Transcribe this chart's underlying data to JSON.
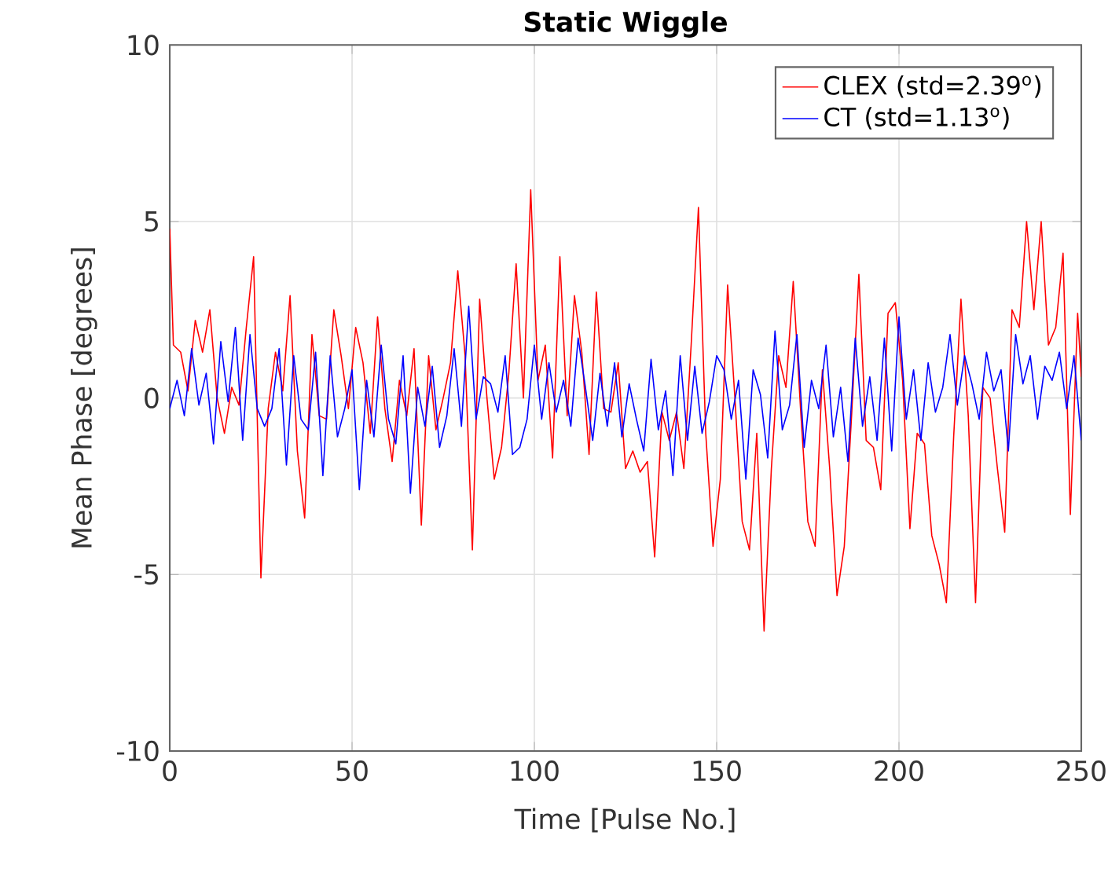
{
  "chart_data": {
    "type": "line",
    "title": "Static Wiggle",
    "xlabel": "Time [Pulse No.]",
    "ylabel": "Mean Phase [degrees]",
    "xlim": [
      0,
      250
    ],
    "ylim": [
      -10,
      10
    ],
    "xticks": [
      0,
      50,
      100,
      150,
      200,
      250
    ],
    "yticks": [
      -10,
      -5,
      0,
      5,
      10
    ],
    "grid": true,
    "legend": "top right",
    "series": [
      {
        "name": "CLEX (std=2.39$^{o}$)",
        "color": "#ff0000",
        "x": [
          0,
          1,
          3,
          5,
          7,
          9,
          11,
          13,
          15,
          17,
          19,
          21,
          23,
          25,
          27,
          29,
          31,
          33,
          35,
          37,
          39,
          41,
          43,
          45,
          47,
          49,
          51,
          53,
          55,
          57,
          59,
          61,
          63,
          65,
          67,
          69,
          71,
          73,
          75,
          77,
          79,
          81,
          83,
          85,
          87,
          89,
          91,
          93,
          95,
          97,
          99,
          101,
          103,
          105,
          107,
          109,
          111,
          113,
          115,
          117,
          119,
          121,
          123,
          125,
          127,
          129,
          131,
          133,
          135,
          137,
          139,
          141,
          143,
          145,
          147,
          149,
          151,
          153,
          155,
          157,
          159,
          161,
          163,
          165,
          167,
          169,
          171,
          173,
          175,
          177,
          179,
          181,
          183,
          185,
          187,
          189,
          191,
          193,
          195,
          197,
          199,
          201,
          203,
          205,
          207,
          209,
          211,
          213,
          215,
          217,
          219,
          221,
          223,
          225,
          227,
          229,
          231,
          233,
          235,
          237,
          239,
          241,
          243,
          245,
          247,
          249,
          250
        ],
        "values": [
          4.8,
          1.5,
          1.3,
          0.2,
          2.2,
          1.3,
          2.5,
          0,
          -1,
          0.3,
          -0.2,
          2,
          4,
          -5.1,
          -0.3,
          1.3,
          0.2,
          2.9,
          -1.5,
          -3.4,
          1.8,
          -0.5,
          -0.6,
          2.5,
          1.2,
          -0.3,
          2,
          1,
          -1,
          2.3,
          -0.3,
          -1.8,
          0.5,
          -0.5,
          1.4,
          -3.6,
          1.2,
          -0.9,
          0,
          1,
          3.6,
          1.2,
          -4.3,
          2.8,
          0,
          -2.3,
          -1.4,
          0.7,
          3.8,
          0,
          5.9,
          0.5,
          1.5,
          -1.7,
          4,
          -0.5,
          2.9,
          1.3,
          -1.6,
          3,
          -0.3,
          -0.4,
          1,
          -2,
          -1.5,
          -2.1,
          -1.8,
          -4.5,
          -0.4,
          -1.2,
          -0.4,
          -2,
          1.5,
          5.4,
          -1,
          -4.2,
          -2.3,
          3.2,
          0,
          -3.5,
          -4.3,
          -1,
          -6.6,
          -2,
          1.2,
          0.3,
          3.3,
          -0.3,
          -3.5,
          -4.2,
          0.8,
          -2,
          -5.6,
          -4.2,
          -0.5,
          3.5,
          -1.2,
          -1.4,
          -2.6,
          2.4,
          2.7,
          0.5,
          -3.7,
          -1,
          -1.3,
          -3.9,
          -4.7,
          -5.8,
          -1.1,
          2.8,
          -0.5,
          -5.8,
          0.3,
          0,
          -2,
          -3.8,
          2.5,
          2,
          5,
          2.5,
          5,
          1.5,
          2,
          4.1,
          -3.3,
          2.4,
          0.6
        ]
      },
      {
        "name": "CT (std=1.13$^{o}$)",
        "color": "#0000ff",
        "x": [
          0,
          2,
          4,
          6,
          8,
          10,
          12,
          14,
          16,
          18,
          20,
          22,
          24,
          26,
          28,
          30,
          32,
          34,
          36,
          38,
          40,
          42,
          44,
          46,
          48,
          50,
          52,
          54,
          56,
          58,
          60,
          62,
          64,
          66,
          68,
          70,
          72,
          74,
          76,
          78,
          80,
          82,
          84,
          86,
          88,
          90,
          92,
          94,
          96,
          98,
          100,
          102,
          104,
          106,
          108,
          110,
          112,
          114,
          116,
          118,
          120,
          122,
          124,
          126,
          128,
          130,
          132,
          134,
          136,
          138,
          140,
          142,
          144,
          146,
          148,
          150,
          152,
          154,
          156,
          158,
          160,
          162,
          164,
          166,
          168,
          170,
          172,
          174,
          176,
          178,
          180,
          182,
          184,
          186,
          188,
          190,
          192,
          194,
          196,
          198,
          200,
          202,
          204,
          206,
          208,
          210,
          212,
          214,
          216,
          218,
          220,
          222,
          224,
          226,
          228,
          230,
          232,
          234,
          236,
          238,
          240,
          242,
          244,
          246,
          248,
          250
        ],
        "values": [
          -0.3,
          0.5,
          -0.5,
          1.4,
          -0.2,
          0.7,
          -1.3,
          1.6,
          -0.1,
          2,
          -1.2,
          1.8,
          -0.3,
          -0.8,
          -0.3,
          1.4,
          -1.9,
          1.2,
          -0.6,
          -0.9,
          1.3,
          -2.2,
          1.2,
          -1.1,
          -0.3,
          0.8,
          -2.6,
          0.5,
          -1.1,
          1.5,
          -0.6,
          -1.3,
          1.2,
          -2.7,
          0.3,
          -0.8,
          0.9,
          -1.4,
          -0.5,
          1.4,
          -0.8,
          2.6,
          -0.6,
          0.6,
          0.4,
          -0.4,
          1.2,
          -1.6,
          -1.4,
          -0.6,
          1.5,
          -0.6,
          1.0,
          -0.4,
          0.5,
          -0.8,
          1.7,
          0.3,
          -1.2,
          0.7,
          -0.8,
          1.0,
          -1.1,
          0.4,
          -0.6,
          -1.5,
          1.1,
          -0.9,
          0.2,
          -2.2,
          1.2,
          -1.2,
          0.9,
          -1.0,
          -0.1,
          1.2,
          0.8,
          -0.6,
          0.5,
          -2.3,
          0.8,
          0.1,
          -1.7,
          1.9,
          -0.9,
          -0.2,
          1.8,
          -1.4,
          0.5,
          -0.3,
          1.5,
          -1.1,
          0.3,
          -1.8,
          1.7,
          -0.8,
          0.6,
          -1.2,
          1.7,
          -1.5,
          2.3,
          -0.6,
          0.8,
          -1.2,
          1.0,
          -0.4,
          0.3,
          1.8,
          -0.2,
          1.2,
          0.4,
          -0.6,
          1.3,
          0.2,
          0.8,
          -1.5,
          1.8,
          0.4,
          1.2,
          -0.6,
          0.9,
          0.5,
          1.3,
          -0.3,
          1.2,
          -1.2
        ]
      }
    ]
  }
}
